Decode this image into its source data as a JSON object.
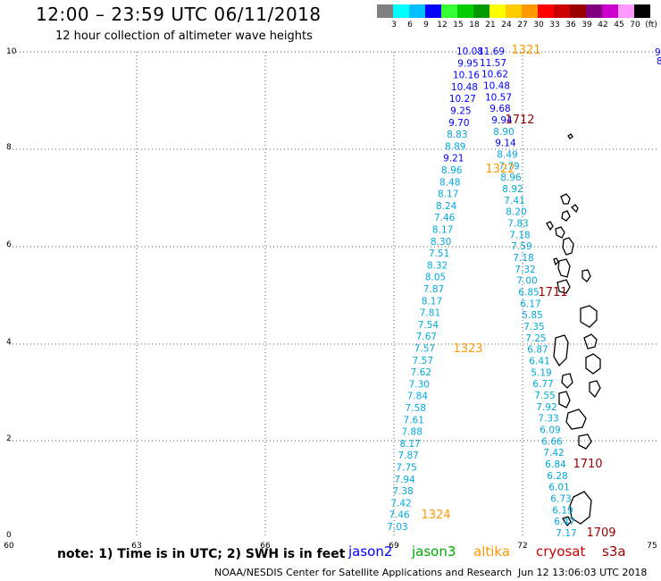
{
  "title": "12:00 – 23:59 UTC 06/11/2018",
  "subtitle": "12 hour collection of altimeter wave heights",
  "colorbar": {
    "colors": [
      "#808080",
      "#00ffff",
      "#00bfff",
      "#0000ff",
      "#33ff33",
      "#00cc00",
      "#009900",
      "#ffff00",
      "#ffcc00",
      "#ff9900",
      "#ff0000",
      "#cc0000",
      "#990000",
      "#800080",
      "#cc00cc",
      "#ff99ff",
      "#000000"
    ],
    "labels": [
      "3",
      "6",
      "9",
      "12",
      "15",
      "18",
      "21",
      "24",
      "27",
      "30",
      "33",
      "36",
      "39",
      "42",
      "45",
      "70",
      "(ft)"
    ]
  },
  "axes": {
    "x_labels": [
      "60",
      "63",
      "66",
      "69",
      "72",
      "75"
    ],
    "y_labels": [
      "0",
      "2",
      "4",
      "6",
      "8",
      "10"
    ]
  },
  "tracks": {
    "west": [
      "10.08",
      "9.95",
      "10.16",
      "10.48",
      "10.27",
      "9.25",
      "9.70",
      "8.83",
      "8.89",
      "9.21",
      "8.96",
      "8.48",
      "8.17",
      "8.24",
      "7.46",
      "8.17",
      "8.30",
      "7.51",
      "8.32",
      "8.05",
      "7.87",
      "8.17",
      "7.81",
      "7.54",
      "7.67",
      "7.57",
      "7.57",
      "7.62",
      "7.30",
      "7.84",
      "7.58",
      "7.61",
      "7.88",
      "8.17",
      "7.87",
      "7.75",
      "7.94",
      "7.38",
      "7.42",
      "7.46",
      "7.03"
    ],
    "east": [
      "11.69",
      "11.57",
      "10.62",
      "10.48",
      "10.57",
      "9.68",
      "9.94",
      "8.90",
      "9.14",
      "8.49",
      "7.79",
      "8.96",
      "8.92",
      "7.41",
      "8.20",
      "7.83",
      "7.18",
      "7.59",
      "7.18",
      "7.32",
      "7.00",
      "6.85",
      "6.17",
      "5.85",
      "7.35",
      "7.25",
      "6.87",
      "6.41",
      "5.19",
      "6.77",
      "7.55",
      "7.92",
      "7.33",
      "6.09",
      "6.66",
      "7.42",
      "6.84",
      "6.28",
      "6.01",
      "6.73",
      "6.19",
      "6.47",
      "7.17"
    ]
  },
  "times": [
    {
      "text": "1321",
      "color": "#ff9900"
    },
    {
      "text": "1712",
      "color": "#990000"
    },
    {
      "text": "1322",
      "color": "#ff9900"
    },
    {
      "text": "1711",
      "color": "#990000"
    },
    {
      "text": "1323",
      "color": "#ff9900"
    },
    {
      "text": "1710",
      "color": "#990000"
    },
    {
      "text": "1324",
      "color": "#ff9900"
    },
    {
      "text": "1709",
      "color": "#990000"
    }
  ],
  "edge_values": [
    "9.",
    "8"
  ],
  "note": "note:  1) Time is in UTC;  2) SWH is in feet",
  "legend": [
    {
      "name": "jason2",
      "color": "#0000ff"
    },
    {
      "name": "jason3",
      "color": "#00aa00"
    },
    {
      "name": "altika",
      "color": "#ff9900"
    },
    {
      "name": "cryosat",
      "color": "#cc0000"
    },
    {
      "name": "s3a",
      "color": "#990000"
    }
  ],
  "footer_left": "NOAA/NESDIS Center for Satellite Applications and Research",
  "footer_right": "Jun 12 13:06:03 UTC 2018"
}
